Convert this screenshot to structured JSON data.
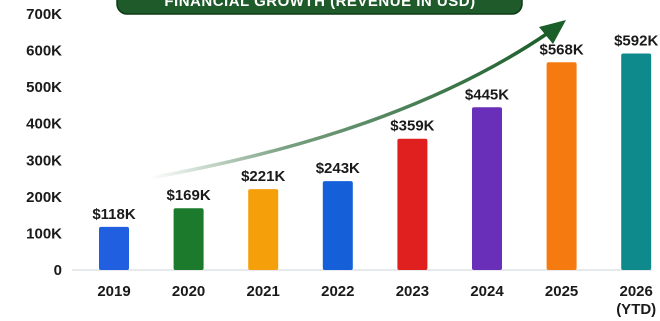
{
  "chart_data": {
    "type": "bar",
    "title": "FINANCIAL GROWTH (REVENUE IN USD)",
    "categories": [
      "2019",
      "2020",
      "2021",
      "2022",
      "2023",
      "2024",
      "2025",
      "2026"
    ],
    "category_sublabels": [
      "",
      "",
      "",
      "",
      "",
      "",
      "",
      "(YTD)"
    ],
    "values": [
      118,
      169,
      221,
      243,
      359,
      445,
      568,
      592
    ],
    "value_labels": [
      "$118K",
      "$169K",
      "$221K",
      "$243K",
      "$359K",
      "$445K",
      "$568K",
      "$592K"
    ],
    "bar_colors": [
      "#1f5fe0",
      "#1b7a2c",
      "#f5a00a",
      "#1560d8",
      "#e01f1f",
      "#6a2fb8",
      "#f57a10",
      "#0f8a8c"
    ],
    "yticks": [
      "0",
      "100K",
      "200K",
      "300K",
      "400K",
      "500K",
      "600K",
      "700K"
    ],
    "ylim": [
      0,
      700
    ],
    "unit": "thousand USD",
    "xlabel": "",
    "ylabel": "",
    "grid": false,
    "trend_arrow": true,
    "title_banner_color": "#1e5a2a",
    "arrow_color": "#1b5e2a"
  }
}
